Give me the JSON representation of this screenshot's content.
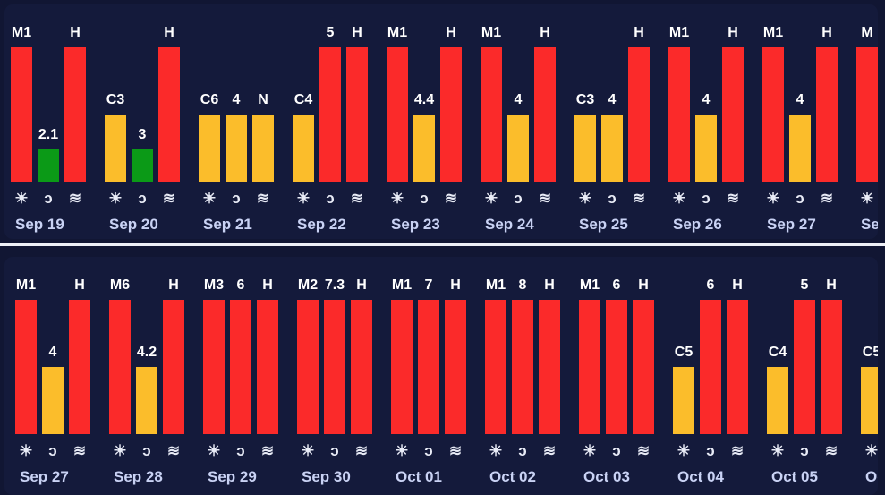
{
  "colors": {
    "background": "#111633",
    "panel": "#141a3b",
    "red": "#fb2a2a",
    "yellow": "#fbbd2b",
    "green": "#0b9a17",
    "label": "#ffffff",
    "date": "#c9d2f4"
  },
  "icons": [
    "sun-icon",
    "magnet-icon",
    "wind-icon"
  ],
  "icon_glyphs": [
    "☀",
    "ↄ",
    "≋"
  ],
  "chart_data": [
    {
      "type": "bar",
      "title": "",
      "scale_max": 5,
      "series_names": [
        "Solar",
        "Magnetic",
        "Wind"
      ],
      "days": [
        {
          "date": "Sep 19",
          "bars": [
            {
              "label": "M1",
              "level": 5,
              "color": "red"
            },
            {
              "label": "2.1",
              "level": 1.2,
              "color": "green"
            },
            {
              "label": "H",
              "level": 5,
              "color": "red"
            }
          ]
        },
        {
          "date": "Sep 20",
          "bars": [
            {
              "label": "C3",
              "level": 2.5,
              "color": "yellow"
            },
            {
              "label": "3",
              "level": 1.2,
              "color": "green"
            },
            {
              "label": "H",
              "level": 5,
              "color": "red"
            }
          ]
        },
        {
          "date": "Sep 21",
          "bars": [
            {
              "label": "C6",
              "level": 2.5,
              "color": "yellow"
            },
            {
              "label": "4",
              "level": 2.5,
              "color": "yellow"
            },
            {
              "label": "N",
              "level": 2.5,
              "color": "yellow"
            }
          ]
        },
        {
          "date": "Sep 22",
          "bars": [
            {
              "label": "C4",
              "level": 2.5,
              "color": "yellow"
            },
            {
              "label": "5",
              "level": 5,
              "color": "red"
            },
            {
              "label": "H",
              "level": 5,
              "color": "red"
            }
          ]
        },
        {
          "date": "Sep 23",
          "bars": [
            {
              "label": "M1",
              "level": 5,
              "color": "red"
            },
            {
              "label": "4.4",
              "level": 2.5,
              "color": "yellow"
            },
            {
              "label": "H",
              "level": 5,
              "color": "red"
            }
          ]
        },
        {
          "date": "Sep 24",
          "bars": [
            {
              "label": "M1",
              "level": 5,
              "color": "red"
            },
            {
              "label": "4",
              "level": 2.5,
              "color": "yellow"
            },
            {
              "label": "H",
              "level": 5,
              "color": "red"
            }
          ]
        },
        {
          "date": "Sep 25",
          "bars": [
            {
              "label": "C3",
              "level": 2.5,
              "color": "yellow"
            },
            {
              "label": "4",
              "level": 2.5,
              "color": "yellow"
            },
            {
              "label": "H",
              "level": 5,
              "color": "red"
            }
          ]
        },
        {
          "date": "Sep 26",
          "bars": [
            {
              "label": "M1",
              "level": 5,
              "color": "red"
            },
            {
              "label": "4",
              "level": 2.5,
              "color": "yellow"
            },
            {
              "label": "H",
              "level": 5,
              "color": "red"
            }
          ]
        },
        {
          "date": "Sep 27",
          "bars": [
            {
              "label": "M1",
              "level": 5,
              "color": "red"
            },
            {
              "label": "4",
              "level": 2.5,
              "color": "yellow"
            },
            {
              "label": "H",
              "level": 5,
              "color": "red"
            }
          ]
        },
        {
          "date": "Se",
          "bars": [
            {
              "label": "M",
              "level": 5,
              "color": "red"
            }
          ]
        }
      ]
    },
    {
      "type": "bar",
      "title": "",
      "scale_max": 5,
      "series_names": [
        "Solar",
        "Magnetic",
        "Wind"
      ],
      "days": [
        {
          "date": "Sep 27",
          "bars": [
            {
              "label": "M1",
              "level": 5,
              "color": "red"
            },
            {
              "label": "4",
              "level": 2.5,
              "color": "yellow"
            },
            {
              "label": "H",
              "level": 5,
              "color": "red"
            }
          ]
        },
        {
          "date": "Sep 28",
          "bars": [
            {
              "label": "M6",
              "level": 5,
              "color": "red"
            },
            {
              "label": "4.2",
              "level": 2.5,
              "color": "yellow"
            },
            {
              "label": "H",
              "level": 5,
              "color": "red"
            }
          ]
        },
        {
          "date": "Sep 29",
          "bars": [
            {
              "label": "M3",
              "level": 5,
              "color": "red"
            },
            {
              "label": "6",
              "level": 5,
              "color": "red"
            },
            {
              "label": "H",
              "level": 5,
              "color": "red"
            }
          ]
        },
        {
          "date": "Sep 30",
          "bars": [
            {
              "label": "M2",
              "level": 5,
              "color": "red"
            },
            {
              "label": "7.3",
              "level": 5,
              "color": "red"
            },
            {
              "label": "H",
              "level": 5,
              "color": "red"
            }
          ]
        },
        {
          "date": "Oct 01",
          "bars": [
            {
              "label": "M1",
              "level": 5,
              "color": "red"
            },
            {
              "label": "7",
              "level": 5,
              "color": "red"
            },
            {
              "label": "H",
              "level": 5,
              "color": "red"
            }
          ]
        },
        {
          "date": "Oct 02",
          "bars": [
            {
              "label": "M1",
              "level": 5,
              "color": "red"
            },
            {
              "label": "8",
              "level": 5,
              "color": "red"
            },
            {
              "label": "H",
              "level": 5,
              "color": "red"
            }
          ]
        },
        {
          "date": "Oct 03",
          "bars": [
            {
              "label": "M1",
              "level": 5,
              "color": "red"
            },
            {
              "label": "6",
              "level": 5,
              "color": "red"
            },
            {
              "label": "H",
              "level": 5,
              "color": "red"
            }
          ]
        },
        {
          "date": "Oct 04",
          "bars": [
            {
              "label": "C5",
              "level": 2.5,
              "color": "yellow"
            },
            {
              "label": "6",
              "level": 5,
              "color": "red"
            },
            {
              "label": "H",
              "level": 5,
              "color": "red"
            }
          ]
        },
        {
          "date": "Oct 05",
          "bars": [
            {
              "label": "C4",
              "level": 2.5,
              "color": "yellow"
            },
            {
              "label": "5",
              "level": 5,
              "color": "red"
            },
            {
              "label": "H",
              "level": 5,
              "color": "red"
            }
          ]
        },
        {
          "date": "Oc",
          "bars": [
            {
              "label": "C5",
              "level": 2.5,
              "color": "yellow"
            }
          ]
        }
      ]
    }
  ]
}
